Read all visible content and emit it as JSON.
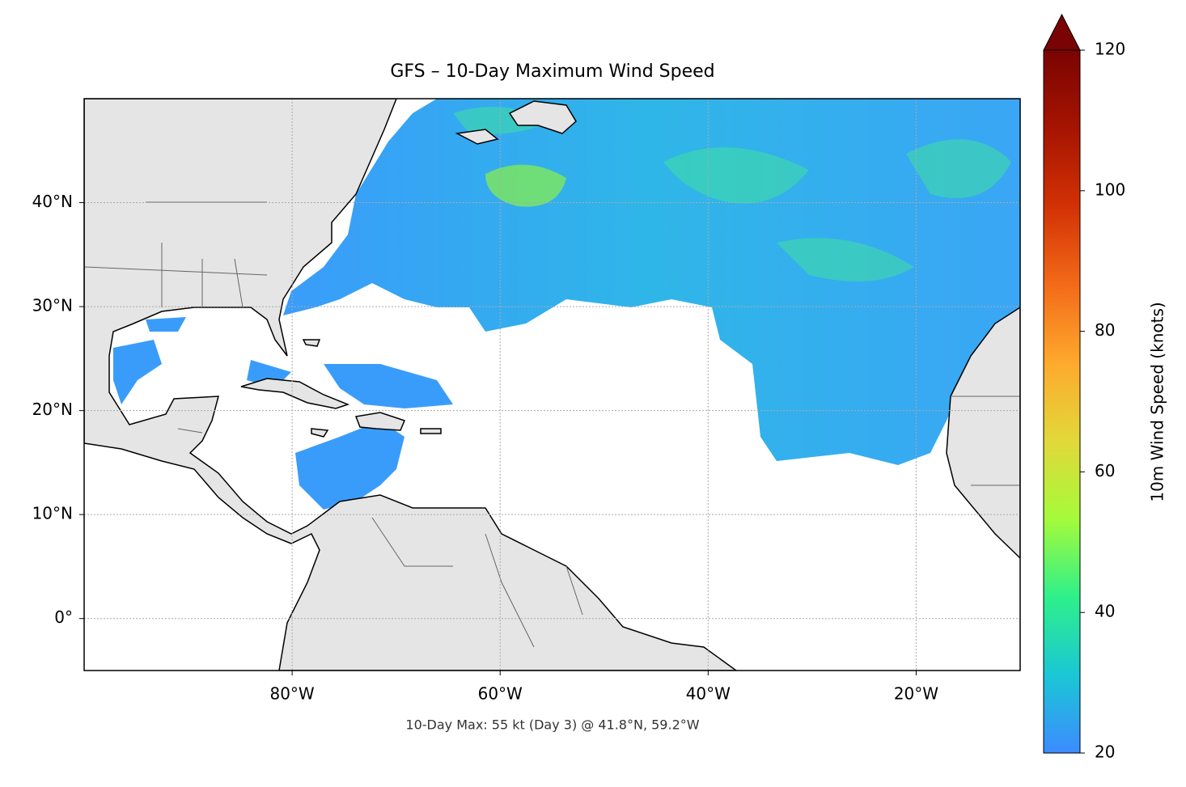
{
  "chart_data": {
    "type": "map",
    "title": "GFS – 10-Day Maximum Wind Speed",
    "annotation": "10-Day Max: 55 kt (Day 3) @ 41.8°N, 59.2°W",
    "xlim": [
      -100,
      -10
    ],
    "ylim": [
      -5,
      50
    ],
    "xticks": [
      {
        "value": -80,
        "label": "80°W"
      },
      {
        "value": -60,
        "label": "60°W"
      },
      {
        "value": -40,
        "label": "40°W"
      },
      {
        "value": -20,
        "label": "20°W"
      }
    ],
    "yticks": [
      {
        "value": 0,
        "label": "0°"
      },
      {
        "value": 10,
        "label": "10°N"
      },
      {
        "value": 20,
        "label": "20°N"
      },
      {
        "value": 30,
        "label": "30°N"
      },
      {
        "value": 40,
        "label": "40°N"
      }
    ],
    "grid": true,
    "colorbar": {
      "label": "10m Wind Speed (knots)",
      "lim": [
        20,
        120
      ],
      "ticks": [
        20,
        40,
        60,
        80,
        100,
        120
      ],
      "extend": "max",
      "colors": [
        "#3d8bff",
        "#1ac7d5",
        "#2ef08a",
        "#a5fb3a",
        "#e2d83a",
        "#fea92d",
        "#f36a18",
        "#d23105",
        "#a61401",
        "#7a0403"
      ]
    }
  }
}
